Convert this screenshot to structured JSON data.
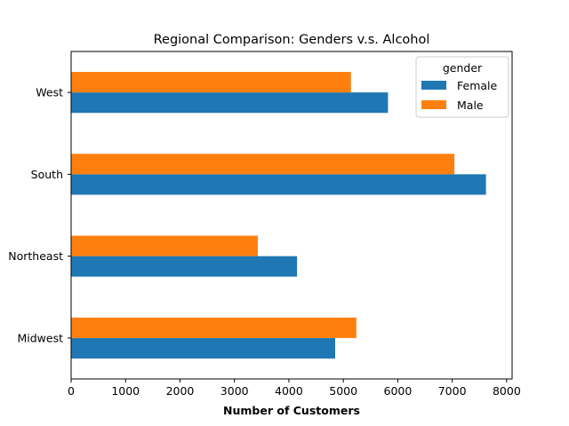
{
  "chart_data": {
    "type": "bar",
    "orientation": "horizontal",
    "title": "Regional Comparison: Genders v.s. Alcohol",
    "xlabel": "Number of Customers",
    "ylabel": "",
    "categories": [
      "Midwest",
      "Northeast",
      "South",
      "West"
    ],
    "series": [
      {
        "name": "Female",
        "color": "#1f77b4",
        "values": [
          4850,
          4150,
          7620,
          5820
        ]
      },
      {
        "name": "Male",
        "color": "#ff7f0e",
        "values": [
          5240,
          3430,
          7040,
          5140
        ]
      }
    ],
    "xlim": [
      0,
      8100
    ],
    "xticks": [
      0,
      1000,
      2000,
      3000,
      4000,
      5000,
      6000,
      7000,
      8000
    ],
    "xtick_labels": [
      "0",
      "1000",
      "2000",
      "3000",
      "4000",
      "5000",
      "6000",
      "7000",
      "8000"
    ],
    "legend": {
      "title": "gender",
      "placement": "top-right"
    },
    "grid": false
  }
}
